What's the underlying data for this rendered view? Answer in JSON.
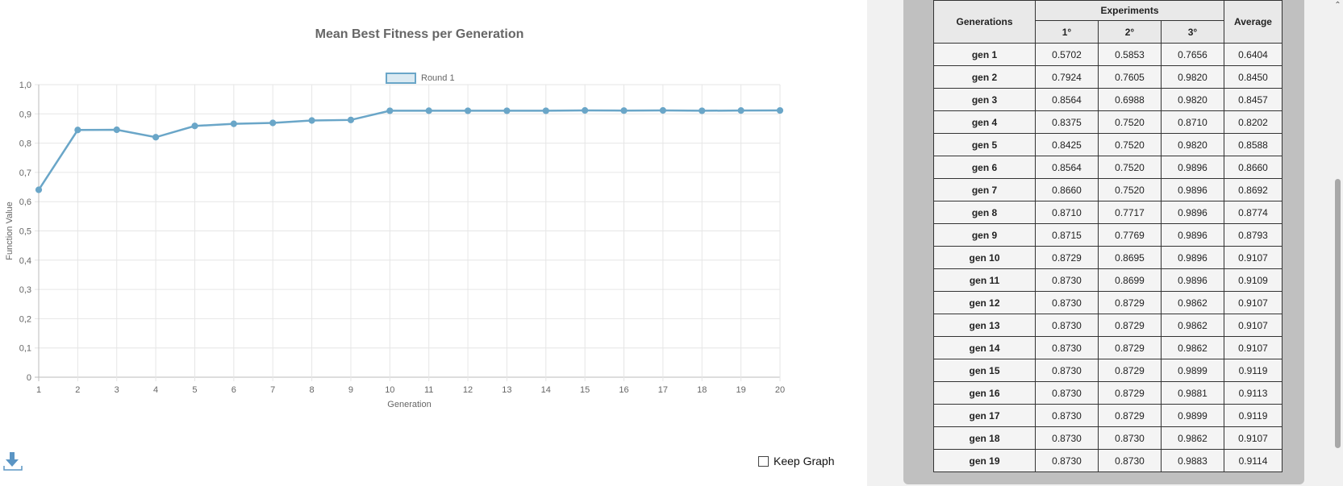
{
  "chart_data": {
    "type": "line",
    "title": "Mean Best Fitness per Generation",
    "xlabel": "Generation",
    "ylabel": "Function Value",
    "x": [
      1,
      2,
      3,
      4,
      5,
      6,
      7,
      8,
      9,
      10,
      11,
      12,
      13,
      14,
      15,
      16,
      17,
      18,
      19,
      20
    ],
    "ylim": [
      0,
      1
    ],
    "y_ticks": [
      "0",
      "0,1",
      "0,2",
      "0,3",
      "0,4",
      "0,5",
      "0,6",
      "0,7",
      "0,8",
      "0,9",
      "1,0"
    ],
    "grid": true,
    "legend": "top-center",
    "series": [
      {
        "name": "Round 1",
        "color": "#6aa6c8",
        "values": [
          0.6404,
          0.845,
          0.8457,
          0.8202,
          0.8588,
          0.866,
          0.8692,
          0.8774,
          0.8793,
          0.9107,
          0.9109,
          0.9107,
          0.9107,
          0.9107,
          0.9119,
          0.9113,
          0.9119,
          0.9107,
          0.9114,
          0.9117
        ]
      }
    ]
  },
  "controls": {
    "keep_graph_label": "Keep Graph"
  },
  "table": {
    "header_generations": "Generations",
    "header_experiments": "Experiments",
    "header_average": "Average",
    "experiment_columns": [
      "1°",
      "2°",
      "3°"
    ],
    "rows": [
      {
        "gen": "gen 1",
        "e1": "0.5702",
        "e2": "0.5853",
        "e3": "0.7656",
        "avg": "0.6404"
      },
      {
        "gen": "gen 2",
        "e1": "0.7924",
        "e2": "0.7605",
        "e3": "0.9820",
        "avg": "0.8450"
      },
      {
        "gen": "gen 3",
        "e1": "0.8564",
        "e2": "0.6988",
        "e3": "0.9820",
        "avg": "0.8457"
      },
      {
        "gen": "gen 4",
        "e1": "0.8375",
        "e2": "0.7520",
        "e3": "0.8710",
        "avg": "0.8202"
      },
      {
        "gen": "gen 5",
        "e1": "0.8425",
        "e2": "0.7520",
        "e3": "0.9820",
        "avg": "0.8588"
      },
      {
        "gen": "gen 6",
        "e1": "0.8564",
        "e2": "0.7520",
        "e3": "0.9896",
        "avg": "0.8660"
      },
      {
        "gen": "gen 7",
        "e1": "0.8660",
        "e2": "0.7520",
        "e3": "0.9896",
        "avg": "0.8692"
      },
      {
        "gen": "gen 8",
        "e1": "0.8710",
        "e2": "0.7717",
        "e3": "0.9896",
        "avg": "0.8774"
      },
      {
        "gen": "gen 9",
        "e1": "0.8715",
        "e2": "0.7769",
        "e3": "0.9896",
        "avg": "0.8793"
      },
      {
        "gen": "gen 10",
        "e1": "0.8729",
        "e2": "0.8695",
        "e3": "0.9896",
        "avg": "0.9107"
      },
      {
        "gen": "gen 11",
        "e1": "0.8730",
        "e2": "0.8699",
        "e3": "0.9896",
        "avg": "0.9109"
      },
      {
        "gen": "gen 12",
        "e1": "0.8730",
        "e2": "0.8729",
        "e3": "0.9862",
        "avg": "0.9107"
      },
      {
        "gen": "gen 13",
        "e1": "0.8730",
        "e2": "0.8729",
        "e3": "0.9862",
        "avg": "0.9107"
      },
      {
        "gen": "gen 14",
        "e1": "0.8730",
        "e2": "0.8729",
        "e3": "0.9862",
        "avg": "0.9107"
      },
      {
        "gen": "gen 15",
        "e1": "0.8730",
        "e2": "0.8729",
        "e3": "0.9899",
        "avg": "0.9119"
      },
      {
        "gen": "gen 16",
        "e1": "0.8730",
        "e2": "0.8729",
        "e3": "0.9881",
        "avg": "0.9113"
      },
      {
        "gen": "gen 17",
        "e1": "0.8730",
        "e2": "0.8729",
        "e3": "0.9899",
        "avg": "0.9119"
      },
      {
        "gen": "gen 18",
        "e1": "0.8730",
        "e2": "0.8730",
        "e3": "0.9862",
        "avg": "0.9107"
      },
      {
        "gen": "gen 19",
        "e1": "0.8730",
        "e2": "0.8730",
        "e3": "0.9883",
        "avg": "0.9114"
      }
    ]
  }
}
